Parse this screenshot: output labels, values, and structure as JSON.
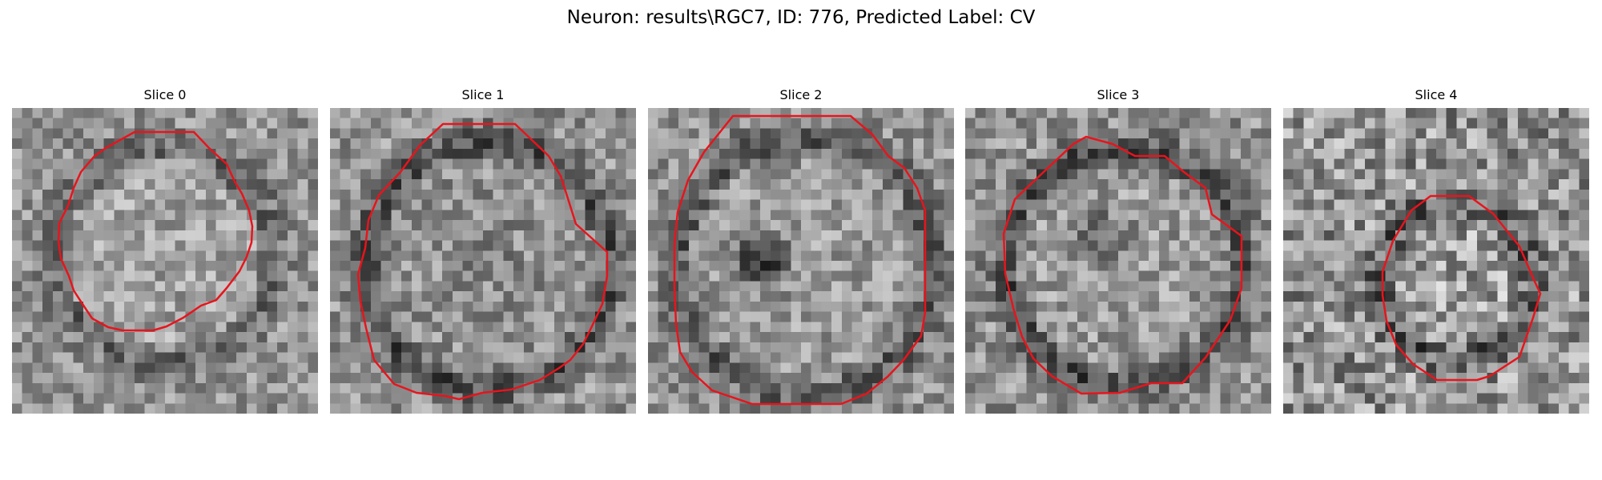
{
  "figure": {
    "title": "Neuron: results\\RGC7, ID: 776, Predicted Label: CV",
    "outline_color": "#e8141c",
    "colormap": "grayscale"
  },
  "panels": [
    {
      "title": "Slice 0"
    },
    {
      "title": "Slice 1"
    },
    {
      "title": "Slice 2"
    },
    {
      "title": "Slice 3"
    },
    {
      "title": "Slice 4"
    }
  ]
}
